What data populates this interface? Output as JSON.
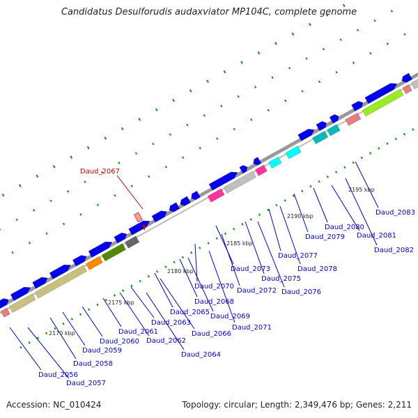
{
  "title": "Candidatus Desulforudis audaxviator MP104C, complete genome",
  "footer": {
    "accession": "Accession: NC_010424",
    "summary": "Topology: circular; Length: 2,349,476 bp; Genes: 2,211"
  },
  "highlight": {
    "label": "Daud_2067",
    "color": "#cc0000"
  },
  "colors": {
    "gene_default": "#0000ee",
    "backbone": "#999999",
    "label_text": "#0000cc",
    "tick": "#009900"
  },
  "scale_labels": [
    {
      "text": "2170 kbp",
      "value_kbp": 2170
    },
    {
      "text": "2175 kbp",
      "value_kbp": 2175
    },
    {
      "text": "2180 kbp",
      "value_kbp": 2180
    },
    {
      "text": "2185 kbp",
      "value_kbp": 2185
    },
    {
      "text": "2190 kbp",
      "value_kbp": 2190
    },
    {
      "text": "2195 kbp",
      "value_kbp": 2195
    }
  ],
  "gene_labels": [
    "Daud_2056",
    "Daud_2057",
    "Daud_2058",
    "Daud_2059",
    "Daud_2060",
    "Daud_2061",
    "Daud_2062",
    "Daud_2063",
    "Daud_2064",
    "Daud_2065",
    "Daud_2066",
    "Daud_2068",
    "Daud_2069",
    "Daud_2070",
    "Daud_2071",
    "Daud_2072",
    "Daud_2073",
    "Daud_2075",
    "Daud_2076",
    "Daud_2077",
    "Daud_2078",
    "Daud_2079",
    "Daud_2080",
    "Daud_2081",
    "Daud_2082",
    "Daud_2083"
  ]
}
